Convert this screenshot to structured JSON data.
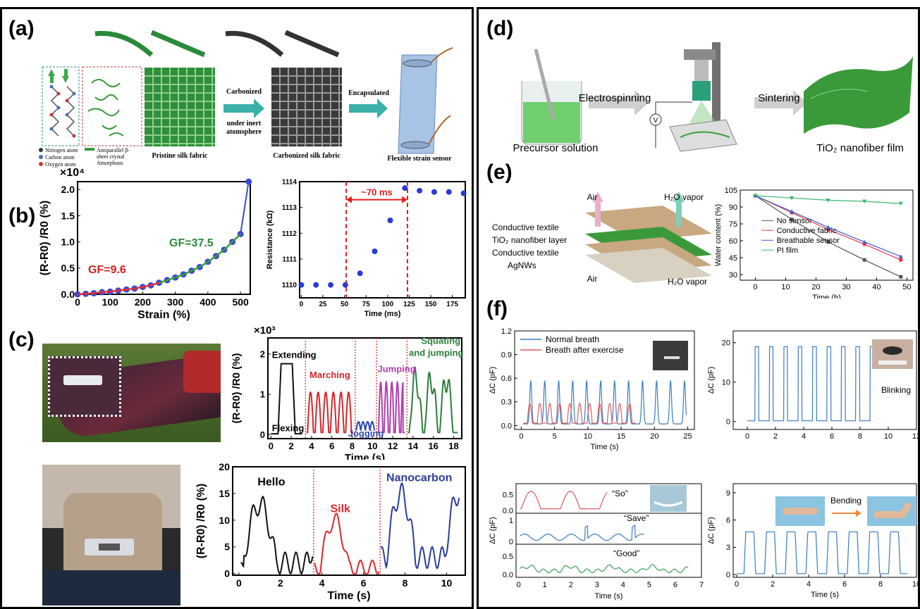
{
  "panels": {
    "a": {
      "label": "(a)",
      "legend": [
        "Nitrogen atom",
        "Carbon atom",
        "Oxygen atom"
      ],
      "legend2": [
        "Antiparallel β-",
        "sheet crystal",
        "Amorphous"
      ],
      "arrow1": [
        "Carbonized",
        "under inert",
        "atomsphere"
      ],
      "arrow2": "Encapsulated",
      "captions": [
        "Pristine silk fabric",
        "Carbonized silk fabric",
        "Flexible strain sensor"
      ]
    },
    "b": {
      "label": "(b)",
      "gf1": "GF=9.6",
      "gf2": "GF=37.5",
      "annot": "~70 ms",
      "exp": "×10"
    },
    "c": {
      "label": "(c)",
      "exp": "×10",
      "labels": [
        "Extending",
        "Flexing",
        "Marching",
        "Jogging",
        "Jumping",
        "Squating",
        "and jumping"
      ],
      "words": [
        "Hello",
        "Silk",
        "Nanocarbon"
      ]
    },
    "d": {
      "label": "(d)",
      "steps": [
        "Electrospinning",
        "Sintering"
      ],
      "captions": [
        "Precursor solution",
        "TiO₂ nanofiber film"
      ]
    },
    "e": {
      "label": "(e)",
      "layers": [
        "Conductive textile",
        "TiO₂ nanofiber layer",
        "Conductive textile",
        "AgNWs"
      ],
      "air": "Air",
      "vapor": "H₂O vapor"
    },
    "f": {
      "label": "(f)",
      "blink": "Blinking",
      "bending": "Bending",
      "so": "“So”",
      "save": "“Save”",
      "good": "“Good”"
    }
  },
  "chart_data": [
    {
      "id": "b1",
      "type": "scatter",
      "xlabel": "Strain (%)",
      "ylabel": "(R-R0) /R0 (%)",
      "xlim": [
        0,
        530
      ],
      "ylim": [
        0,
        2.15
      ],
      "xticks": [
        0,
        100,
        200,
        300,
        400,
        500
      ],
      "yticks": [
        0.0,
        0.5,
        1.0,
        1.5,
        2.0
      ],
      "x": [
        0,
        25,
        50,
        75,
        100,
        125,
        150,
        175,
        200,
        225,
        250,
        275,
        300,
        325,
        350,
        375,
        400,
        425,
        450,
        475,
        500,
        525
      ],
      "y": [
        0.0,
        0.01,
        0.02,
        0.04,
        0.05,
        0.07,
        0.09,
        0.11,
        0.14,
        0.17,
        0.22,
        0.27,
        0.32,
        0.38,
        0.45,
        0.52,
        0.62,
        0.73,
        0.85,
        1.0,
        1.15,
        2.15
      ]
    },
    {
      "id": "b2",
      "type": "scatter",
      "xlabel": "Time (ms)",
      "ylabel": "Resistance (kΩ)",
      "xlim": [
        -2,
        190
      ],
      "ylim": [
        1109.5,
        1114
      ],
      "xticks": [
        0,
        25,
        50,
        75,
        100,
        125,
        150,
        175
      ],
      "yticks": [
        1110,
        1111,
        1112,
        1113,
        1114
      ],
      "x": [
        0,
        17,
        34,
        51,
        68,
        85,
        103,
        120,
        137,
        154,
        171,
        188
      ],
      "y": [
        1110,
        1110,
        1110,
        1110,
        1110.45,
        1111.3,
        1112.5,
        1113.75,
        1113.65,
        1113.6,
        1113.6,
        1113.55
      ],
      "vlines": [
        52,
        123
      ]
    },
    {
      "id": "c1",
      "type": "line",
      "xlabel": "Time (s)",
      "ylabel": "(R-R0) /R0 (%)",
      "xlim": [
        -0.3,
        18.8
      ],
      "ylim": [
        -0.1,
        2.4
      ],
      "xticks": [
        0,
        2,
        4,
        6,
        8,
        10,
        12,
        14,
        16,
        18
      ],
      "yticks": [
        0,
        1,
        2
      ],
      "vlines": [
        3.4,
        8.3,
        10.4,
        13.4
      ],
      "series": [
        {
          "name": "Extending",
          "color": "#111111"
        },
        {
          "name": "Marching",
          "color": "#d7262a"
        },
        {
          "name": "Jogging",
          "color": "#2b4aa8"
        },
        {
          "name": "Jumping",
          "color": "#b03fae"
        },
        {
          "name": "Squating and jumping",
          "color": "#2a7e3a"
        }
      ]
    },
    {
      "id": "c2",
      "type": "line",
      "xlabel": "Time (s)",
      "ylabel": "(R-R0) /R0 (%)",
      "xlim": [
        -0.3,
        10.9
      ],
      "ylim": [
        -0.3,
        20
      ],
      "xticks": [
        0,
        2,
        4,
        6,
        8,
        10
      ],
      "yticks": [
        0,
        5,
        10,
        15,
        20
      ],
      "vlines": [
        3.6,
        6.8
      ],
      "series": [
        {
          "name": "Hello",
          "color": "#111111"
        },
        {
          "name": "Silk",
          "color": "#e0262a"
        },
        {
          "name": "Nanocarbon",
          "color": "#2b3d9b"
        }
      ]
    },
    {
      "id": "e1",
      "type": "line",
      "xlabel": "Time (h)",
      "ylabel": "Water content (%)",
      "xlim": [
        -5,
        52
      ],
      "ylim": [
        25,
        105
      ],
      "xticks": [
        0,
        10,
        20,
        30,
        40,
        50
      ],
      "yticks": [
        30,
        45,
        60,
        75,
        90,
        105
      ],
      "x": [
        0,
        12,
        24,
        36,
        48
      ],
      "series": [
        {
          "name": "No sensor",
          "color": "#555555",
          "values": [
            100,
            79,
            59,
            43,
            28
          ]
        },
        {
          "name": "Conductive fabric",
          "color": "#e8344a",
          "values": [
            100,
            85,
            70,
            57,
            43
          ]
        },
        {
          "name": "Breathable sensor",
          "color": "#3a5fcd",
          "values": [
            100,
            86,
            72,
            59,
            46
          ]
        },
        {
          "name": "PI film",
          "color": "#3cb371",
          "values": [
            100,
            98,
            96,
            95,
            93
          ]
        }
      ]
    },
    {
      "id": "f1",
      "type": "line",
      "xlabel": "Time (s)",
      "ylabel": "ΔC (pF)",
      "xlim": [
        -1,
        26
      ],
      "ylim": [
        -0.05,
        1.2
      ],
      "xticks": [
        0,
        5,
        10,
        15,
        20,
        25
      ],
      "yticks": [
        0.0,
        0.3,
        0.6,
        0.9,
        1.2
      ],
      "series": [
        {
          "name": "Normal breath",
          "color": "#3a7cc4"
        },
        {
          "name": "Breath after exercise",
          "color": "#e05a5a"
        }
      ]
    },
    {
      "id": "f2",
      "type": "line",
      "xlabel": "",
      "ylabel": "ΔC (pF)",
      "xlim": [
        -1,
        12
      ],
      "ylim": [
        -2,
        23
      ],
      "xticks": [
        0,
        2,
        4,
        6,
        8,
        10,
        12
      ],
      "yticks": [
        0,
        10,
        20
      ],
      "series": [
        {
          "name": "Blinking",
          "color": "#3a7cc4"
        }
      ]
    },
    {
      "id": "f3",
      "type": "line",
      "xlabel": "Time (s)",
      "ylabel": "ΔC (pF)",
      "xlim": [
        -0.1,
        7
      ],
      "xticks": [
        0,
        1,
        2,
        3,
        4,
        5,
        6,
        7
      ],
      "series": [
        {
          "name": "So",
          "color": "#e05a5a"
        },
        {
          "name": "Save",
          "color": "#3a7cc4"
        },
        {
          "name": "Good",
          "color": "#3aa05a"
        }
      ]
    },
    {
      "id": "f4",
      "type": "line",
      "xlabel": "Time (s)",
      "ylabel": "ΔC (pF)",
      "xlim": [
        -0.2,
        10
      ],
      "ylim": [
        -0.3,
        10
      ],
      "xticks": [
        0,
        2,
        4,
        6,
        8,
        10
      ],
      "yticks": [
        0,
        3,
        6,
        9
      ],
      "series": [
        {
          "name": "Bending",
          "color": "#3a7cc4"
        }
      ]
    }
  ]
}
